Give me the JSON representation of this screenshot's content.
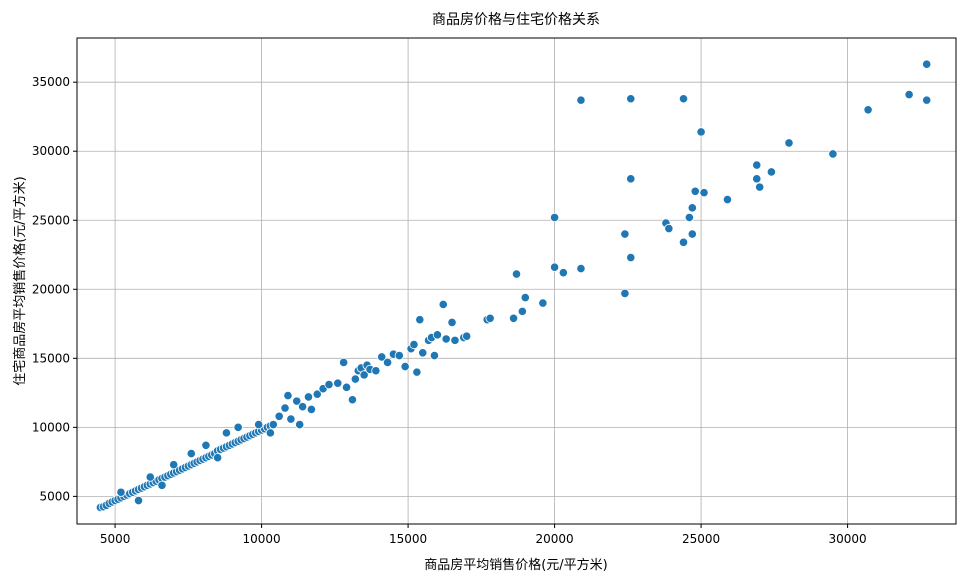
{
  "chart_data": {
    "type": "scatter",
    "title": "商品房价格与住宅价格关系",
    "xlabel": "商品房平均销售价格(元/平方米)",
    "ylabel": "住宅商品房平均销售价格(元/平方米)",
    "xlim": [
      3700,
      33700
    ],
    "ylim": [
      3000,
      38200
    ],
    "xticks": [
      5000,
      10000,
      15000,
      20000,
      25000,
      30000
    ],
    "yticks": [
      5000,
      10000,
      15000,
      20000,
      25000,
      30000,
      35000
    ],
    "grid": true,
    "marker_color": "#1f77b4",
    "points": [
      [
        4500,
        4200
      ],
      [
        4600,
        4250
      ],
      [
        4700,
        4350
      ],
      [
        4800,
        4500
      ],
      [
        4900,
        4600
      ],
      [
        5000,
        4700
      ],
      [
        5100,
        4800
      ],
      [
        5200,
        4900
      ],
      [
        5300,
        5000
      ],
      [
        5400,
        5100
      ],
      [
        5500,
        5200
      ],
      [
        5600,
        5300
      ],
      [
        5700,
        5400
      ],
      [
        5800,
        5500
      ],
      [
        5900,
        5600
      ],
      [
        6000,
        5700
      ],
      [
        6100,
        5800
      ],
      [
        6200,
        5900
      ],
      [
        6300,
        6000
      ],
      [
        6400,
        6100
      ],
      [
        6500,
        6200
      ],
      [
        6600,
        6300
      ],
      [
        6700,
        6400
      ],
      [
        6800,
        6500
      ],
      [
        6900,
        6600
      ],
      [
        7000,
        6700
      ],
      [
        7100,
        6800
      ],
      [
        7200,
        6900
      ],
      [
        7300,
        7000
      ],
      [
        7400,
        7100
      ],
      [
        7500,
        7200
      ],
      [
        7600,
        7300
      ],
      [
        7700,
        7400
      ],
      [
        7800,
        7500
      ],
      [
        7900,
        7600
      ],
      [
        8000,
        7700
      ],
      [
        8100,
        7800
      ],
      [
        8200,
        7900
      ],
      [
        8300,
        8000
      ],
      [
        8400,
        8100
      ],
      [
        8500,
        8300
      ],
      [
        8600,
        8400
      ],
      [
        8700,
        8500
      ],
      [
        8800,
        8600
      ],
      [
        8900,
        8700
      ],
      [
        9000,
        8800
      ],
      [
        9100,
        8900
      ],
      [
        9200,
        9000
      ],
      [
        9300,
        9100
      ],
      [
        9400,
        9200
      ],
      [
        9500,
        9300
      ],
      [
        9600,
        9400
      ],
      [
        9700,
        9500
      ],
      [
        9800,
        9600
      ],
      [
        9900,
        9700
      ],
      [
        10000,
        9800
      ],
      [
        10100,
        9900
      ],
      [
        10200,
        10000
      ],
      [
        10300,
        10100
      ],
      [
        10400,
        10200
      ],
      [
        5200,
        5300
      ],
      [
        5800,
        4700
      ],
      [
        6200,
        6400
      ],
      [
        6600,
        5800
      ],
      [
        7000,
        7300
      ],
      [
        7600,
        8100
      ],
      [
        8100,
        8700
      ],
      [
        8500,
        7800
      ],
      [
        8800,
        9600
      ],
      [
        9200,
        10000
      ],
      [
        9900,
        10200
      ],
      [
        10300,
        9600
      ],
      [
        10600,
        10800
      ],
      [
        10800,
        11400
      ],
      [
        11000,
        10600
      ],
      [
        11200,
        11900
      ],
      [
        11400,
        11500
      ],
      [
        11700,
        11300
      ],
      [
        11900,
        12400
      ],
      [
        10900,
        12300
      ],
      [
        11300,
        10200
      ],
      [
        11600,
        12200
      ],
      [
        12100,
        12800
      ],
      [
        12300,
        13100
      ],
      [
        12600,
        13200
      ],
      [
        12800,
        14700
      ],
      [
        12900,
        12900
      ],
      [
        13100,
        12000
      ],
      [
        13200,
        13500
      ],
      [
        13300,
        14100
      ],
      [
        13400,
        14300
      ],
      [
        13500,
        13800
      ],
      [
        13600,
        14500
      ],
      [
        13700,
        14200
      ],
      [
        13900,
        14100
      ],
      [
        14100,
        15100
      ],
      [
        14300,
        14700
      ],
      [
        14500,
        15300
      ],
      [
        14700,
        15200
      ],
      [
        14900,
        14400
      ],
      [
        15100,
        15700
      ],
      [
        15200,
        16000
      ],
      [
        15300,
        14000
      ],
      [
        15400,
        17800
      ],
      [
        15500,
        15400
      ],
      [
        15700,
        16300
      ],
      [
        15800,
        16500
      ],
      [
        15900,
        15200
      ],
      [
        16000,
        16700
      ],
      [
        16200,
        18900
      ],
      [
        16300,
        16400
      ],
      [
        16500,
        17600
      ],
      [
        16600,
        16300
      ],
      [
        16900,
        16500
      ],
      [
        17000,
        16600
      ],
      [
        17700,
        17800
      ],
      [
        17800,
        17900
      ],
      [
        18600,
        17900
      ],
      [
        18700,
        21100
      ],
      [
        18900,
        18400
      ],
      [
        19000,
        19400
      ],
      [
        19600,
        19000
      ],
      [
        20000,
        21600
      ],
      [
        20000,
        25200
      ],
      [
        20300,
        21200
      ],
      [
        20900,
        21500
      ],
      [
        20900,
        33700
      ],
      [
        22400,
        19700
      ],
      [
        22400,
        24000
      ],
      [
        22600,
        22300
      ],
      [
        22600,
        28000
      ],
      [
        22600,
        33800
      ],
      [
        23800,
        24800
      ],
      [
        23900,
        24400
      ],
      [
        24400,
        23400
      ],
      [
        24400,
        33800
      ],
      [
        24600,
        25200
      ],
      [
        24700,
        25900
      ],
      [
        24700,
        24000
      ],
      [
        24800,
        27100
      ],
      [
        25000,
        31400
      ],
      [
        25100,
        27000
      ],
      [
        25900,
        26500
      ],
      [
        26900,
        29000
      ],
      [
        26900,
        28000
      ],
      [
        27000,
        27400
      ],
      [
        27400,
        28500
      ],
      [
        28000,
        30600
      ],
      [
        29500,
        29800
      ],
      [
        30700,
        33000
      ],
      [
        32100,
        34100
      ],
      [
        32700,
        36300
      ],
      [
        32700,
        33700
      ]
    ]
  }
}
